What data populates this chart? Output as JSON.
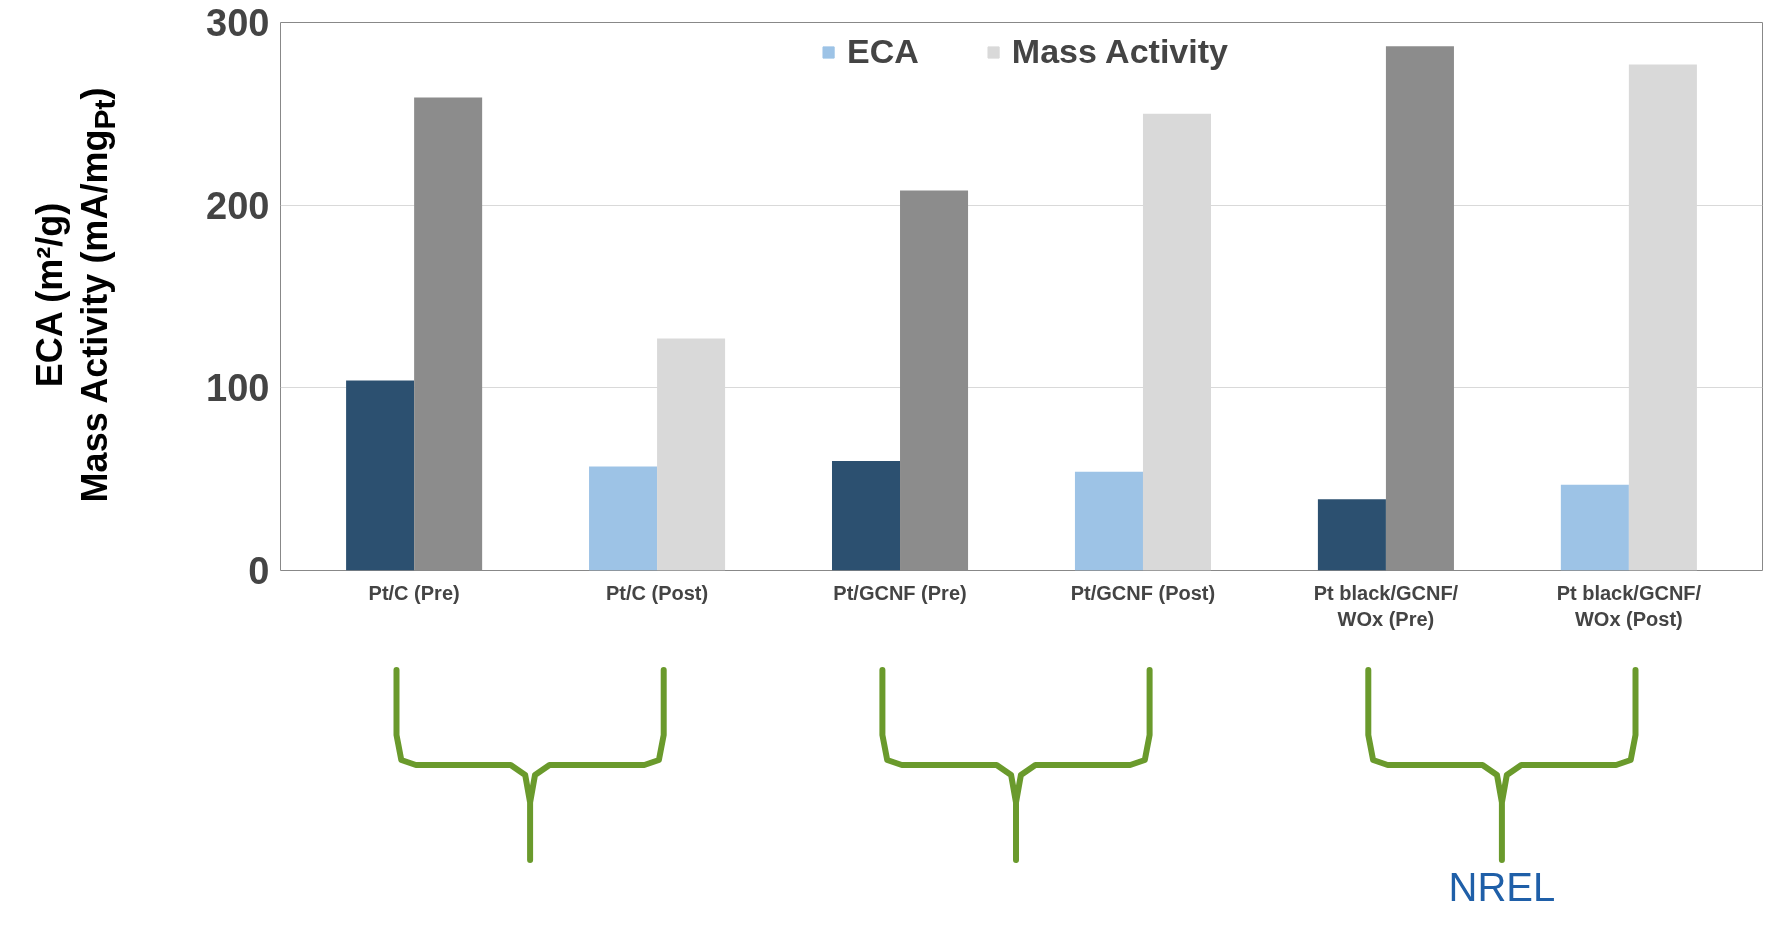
{
  "chart_data": {
    "type": "bar",
    "ylabel": "ECA (m²/g)\nMass Activity (mA/mg$_{Pt}$)",
    "categories": [
      "Pt/C (Pre)",
      "Pt/C (Post)",
      "Pt/GCNF (Pre)",
      "Pt/GCNF (Post)",
      "Pt black/GCNF/\nWOx (Pre)",
      "Pt black/GCNF/\nWOx (Post)"
    ],
    "series": [
      {
        "name": "ECA",
        "color": "#9dc3e6",
        "colors": [
          "#2c5070",
          "#9dc3e6",
          "#2c5070",
          "#9dc3e6",
          "#2c5070",
          "#9dc3e6"
        ],
        "values": [
          104,
          57,
          60,
          54,
          39,
          47
        ]
      },
      {
        "name": "Mass Activity",
        "color": "#d9d9d9",
        "colors": [
          "#8c8c8c",
          "#d9d9d9",
          "#8c8c8c",
          "#d9d9d9",
          "#8c8c8c",
          "#d9d9d9"
        ],
        "values": [
          259,
          127,
          208,
          250,
          287,
          277
        ]
      }
    ],
    "ylim": [
      0,
      300
    ],
    "yticks": [
      0,
      100,
      200,
      300
    ],
    "grid": "y",
    "legend": "top",
    "annotations": [
      "NREL"
    ]
  }
}
